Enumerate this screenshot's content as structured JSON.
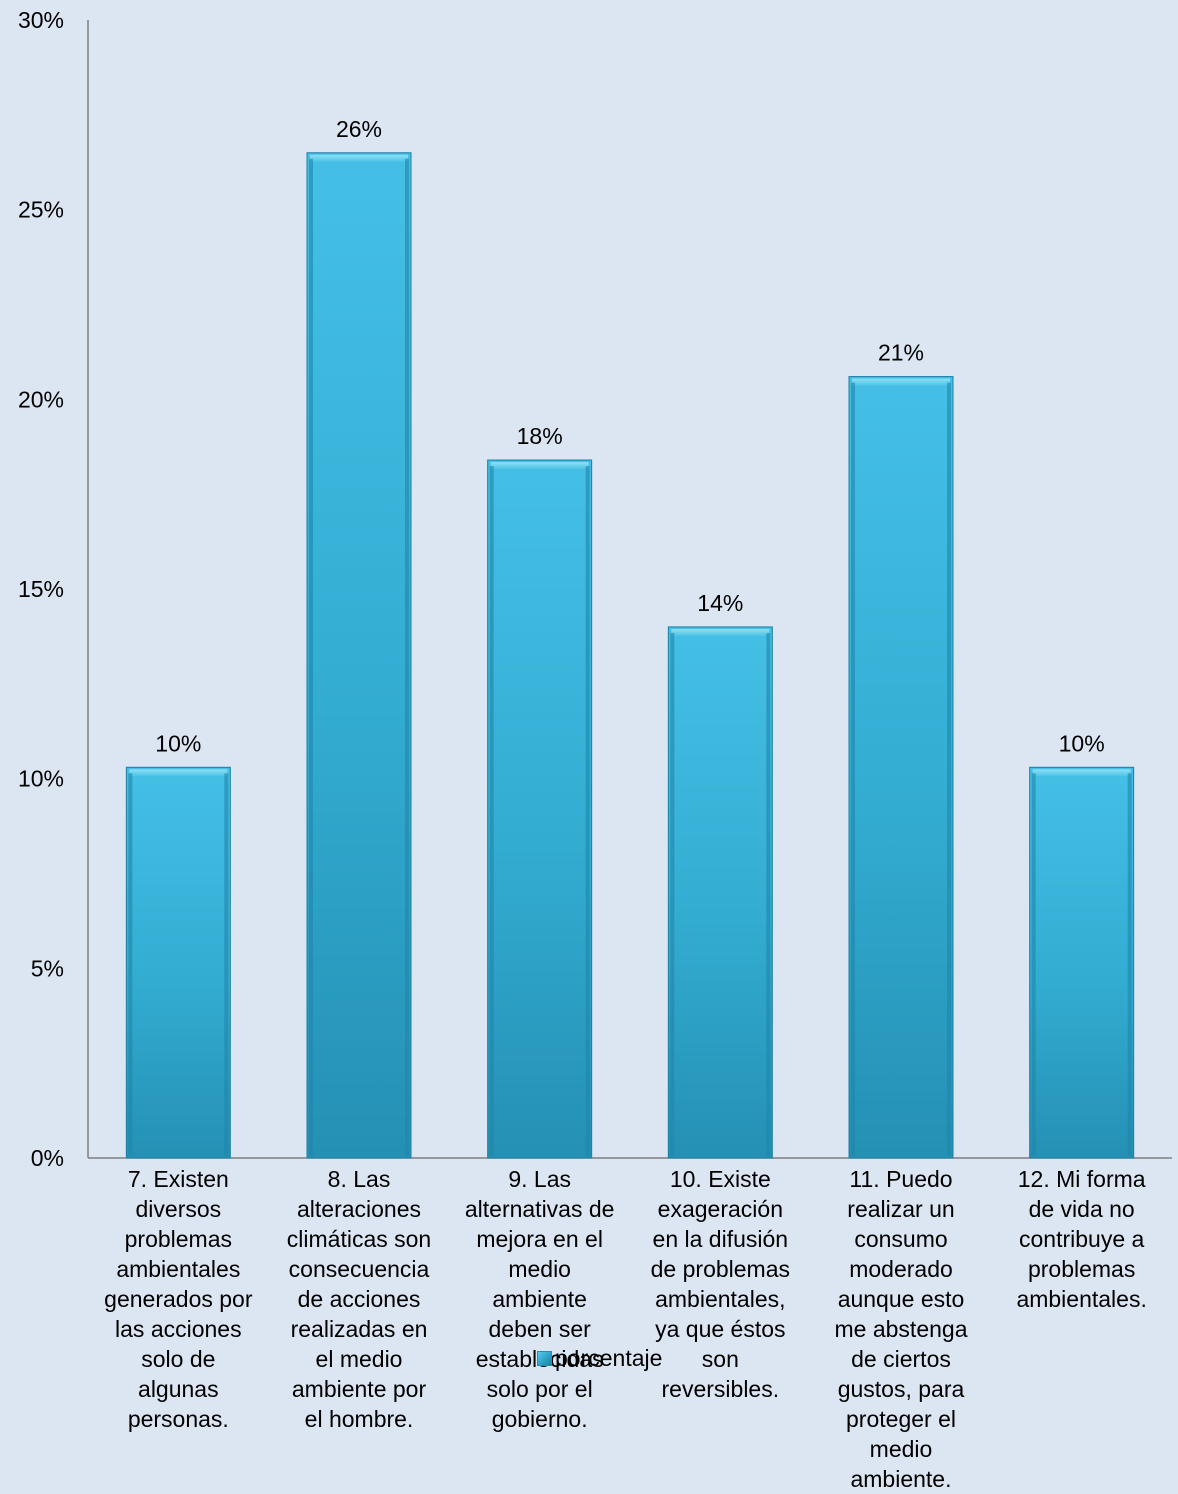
{
  "chart_data": {
    "type": "bar",
    "categories": [
      "7.\tExisten diversos problemas ambientales generados por las acciones solo de algunas personas.",
      "8.\tLas alteraciones climáticas son consecuencia de acciones realizadas en el medio ambiente por el hombre.",
      "9.\tLas alternativas de mejora en el medio ambiente deben ser establecidas solo por el gobierno.",
      "10.\tExiste exageración en la difusión de problemas ambientales, ya que éstos son reversibles.",
      "11.\tPuedo realizar un consumo moderado aunque esto me abstenga de ciertos gustos, para proteger el medio ambiente.",
      "12.\tMi forma de vida no contribuye a problemas ambientales."
    ],
    "category_label_lines": [
      [
        "7.        Existen",
        "diversos",
        "problemas",
        "ambientales",
        "generados por",
        "las acciones",
        "solo de",
        "algunas",
        "personas."
      ],
      [
        "8.        Las",
        "alteraciones",
        "climáticas son",
        "consecuencia",
        "de acciones",
        "realizadas en",
        "el medio",
        "ambiente  por",
        "el hombre."
      ],
      [
        "9.        Las",
        "alternativas  de",
        "mejora en el",
        "medio",
        "ambiente",
        "deben ser",
        "establecidas",
        "solo por el",
        "gobierno."
      ],
      [
        "10.   Existe",
        "exageración",
        "en la difusión",
        "de problemas",
        "ambientales,",
        "ya que éstos",
        "son",
        "reversibles."
      ],
      [
        "11.   Puedo",
        "realizar un",
        "consumo",
        "moderado",
        "aunque esto",
        "me  abstenga",
        "de ciertos",
        "gustos, para",
        "proteger el",
        "medio",
        "ambiente."
      ],
      [
        "12.   Mi forma",
        "de vida no",
        "contribuye a",
        "problemas",
        "ambientales."
      ]
    ],
    "series": [
      {
        "name": "porcentaje",
        "values": [
          0.103,
          0.265,
          0.184,
          0.14,
          0.206,
          0.103
        ],
        "data_labels": [
          "10%",
          "26%",
          "18%",
          "14%",
          "21%",
          "10%"
        ]
      }
    ],
    "ylim": [
      0,
      0.3
    ],
    "yticks": [
      0,
      0.05,
      0.1,
      0.15,
      0.2,
      0.25,
      0.3
    ],
    "ytick_labels": [
      "0%",
      "5%",
      "10%",
      "15%",
      "20%",
      "25%",
      "30%"
    ],
    "legend": "bottom",
    "grid": false,
    "colors": {
      "bar_light": "#4cc3e6",
      "bar_mid": "#31a9cf",
      "bar_dark": "#1f88ab",
      "background": "#dce6f2",
      "axis": "#7f7f7f"
    }
  },
  "legend_label": "porcentaje"
}
